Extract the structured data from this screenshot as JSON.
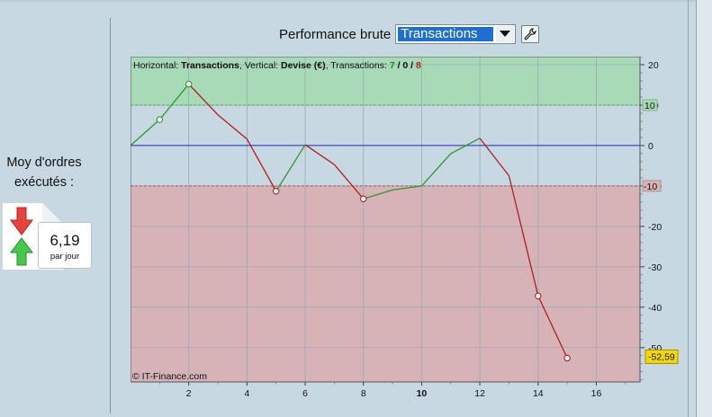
{
  "header": {
    "label": "Performance brute",
    "select_value": "Transactions"
  },
  "orders": {
    "title_line1": "Moy d'ordres",
    "title_line2": "exécutés :",
    "value": "6,19",
    "unit": "par jour"
  },
  "chart_info": {
    "prefix_h": "Horizontal: ",
    "h_value": "Transactions",
    "prefix_v": ", Vertical: ",
    "v_value": "Devise (€)",
    "prefix_t": ", Transactions: ",
    "t_win": "7",
    "slash1": " / ",
    "t_zero": "0",
    "slash2": " / ",
    "t_loss": "8"
  },
  "copyright": "© IT-Finance.com",
  "last_value_label": "-52,59",
  "threshold_labels": [
    "10",
    "-10"
  ],
  "colors": {
    "accent": "#1f6fd1",
    "profit_zone": "#a8dab8",
    "loss_zone": "#d7b3b8",
    "win_line": "#2a9a2a",
    "loss_line": "#b01f1f",
    "zero_line": "#2222cc"
  },
  "chart_data": {
    "type": "line",
    "x": [
      0,
      1,
      2,
      3,
      4,
      5,
      6,
      7,
      8,
      9,
      10,
      11,
      12,
      13,
      14,
      15
    ],
    "values": [
      0,
      6.4,
      15.2,
      7.6,
      1.6,
      -11.3,
      0.2,
      -4.7,
      -13.2,
      -11,
      -10,
      -2,
      1.8,
      -7.5,
      -37.2,
      -52.59
    ],
    "marked_points": [
      1,
      2,
      5,
      8,
      14,
      15
    ],
    "xlim": [
      0,
      17.5
    ],
    "ylim": [
      -58.5,
      22
    ],
    "xticks": [
      "2",
      "4",
      "6",
      "8",
      "10",
      "12",
      "14",
      "16"
    ],
    "xtick_values": [
      2,
      4,
      6,
      8,
      10,
      12,
      14,
      16
    ],
    "yticks": [
      "20",
      "10",
      "0",
      "-10",
      "-20",
      "-30",
      "-40",
      "-50"
    ],
    "ytick_values": [
      20,
      10,
      0,
      -10,
      -20,
      -30,
      -40,
      -50
    ],
    "thresholds": [
      10,
      -10
    ],
    "grid": true
  }
}
